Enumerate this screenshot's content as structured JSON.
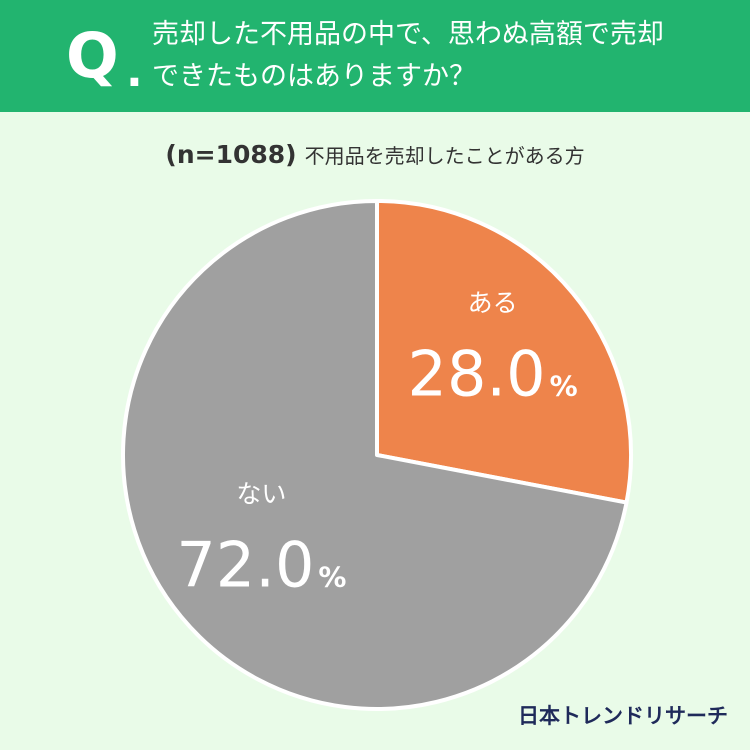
{
  "question": {
    "mark": "Q",
    "dot": ".",
    "lines": [
      "売却した不用品の中で、思わぬ高額で売却",
      "できたものはありますか？"
    ]
  },
  "subtitle": {
    "n": "(n=1088)",
    "description": "不用品を売却したことがある方"
  },
  "colors": {
    "header": "#22b46f",
    "background": "#e9fbe8",
    "yes": "#ee844b",
    "no": "#a0a0a0"
  },
  "chart_data": {
    "type": "pie",
    "slices": [
      {
        "label": "ある",
        "value": 28.0,
        "display": "28.0",
        "unit": "%",
        "color": "#ee844b"
      },
      {
        "label": "ない",
        "value": 72.0,
        "display": "72.0",
        "unit": "%",
        "color": "#a0a0a0"
      }
    ]
  },
  "logo": "日本トレンドリサーチ"
}
